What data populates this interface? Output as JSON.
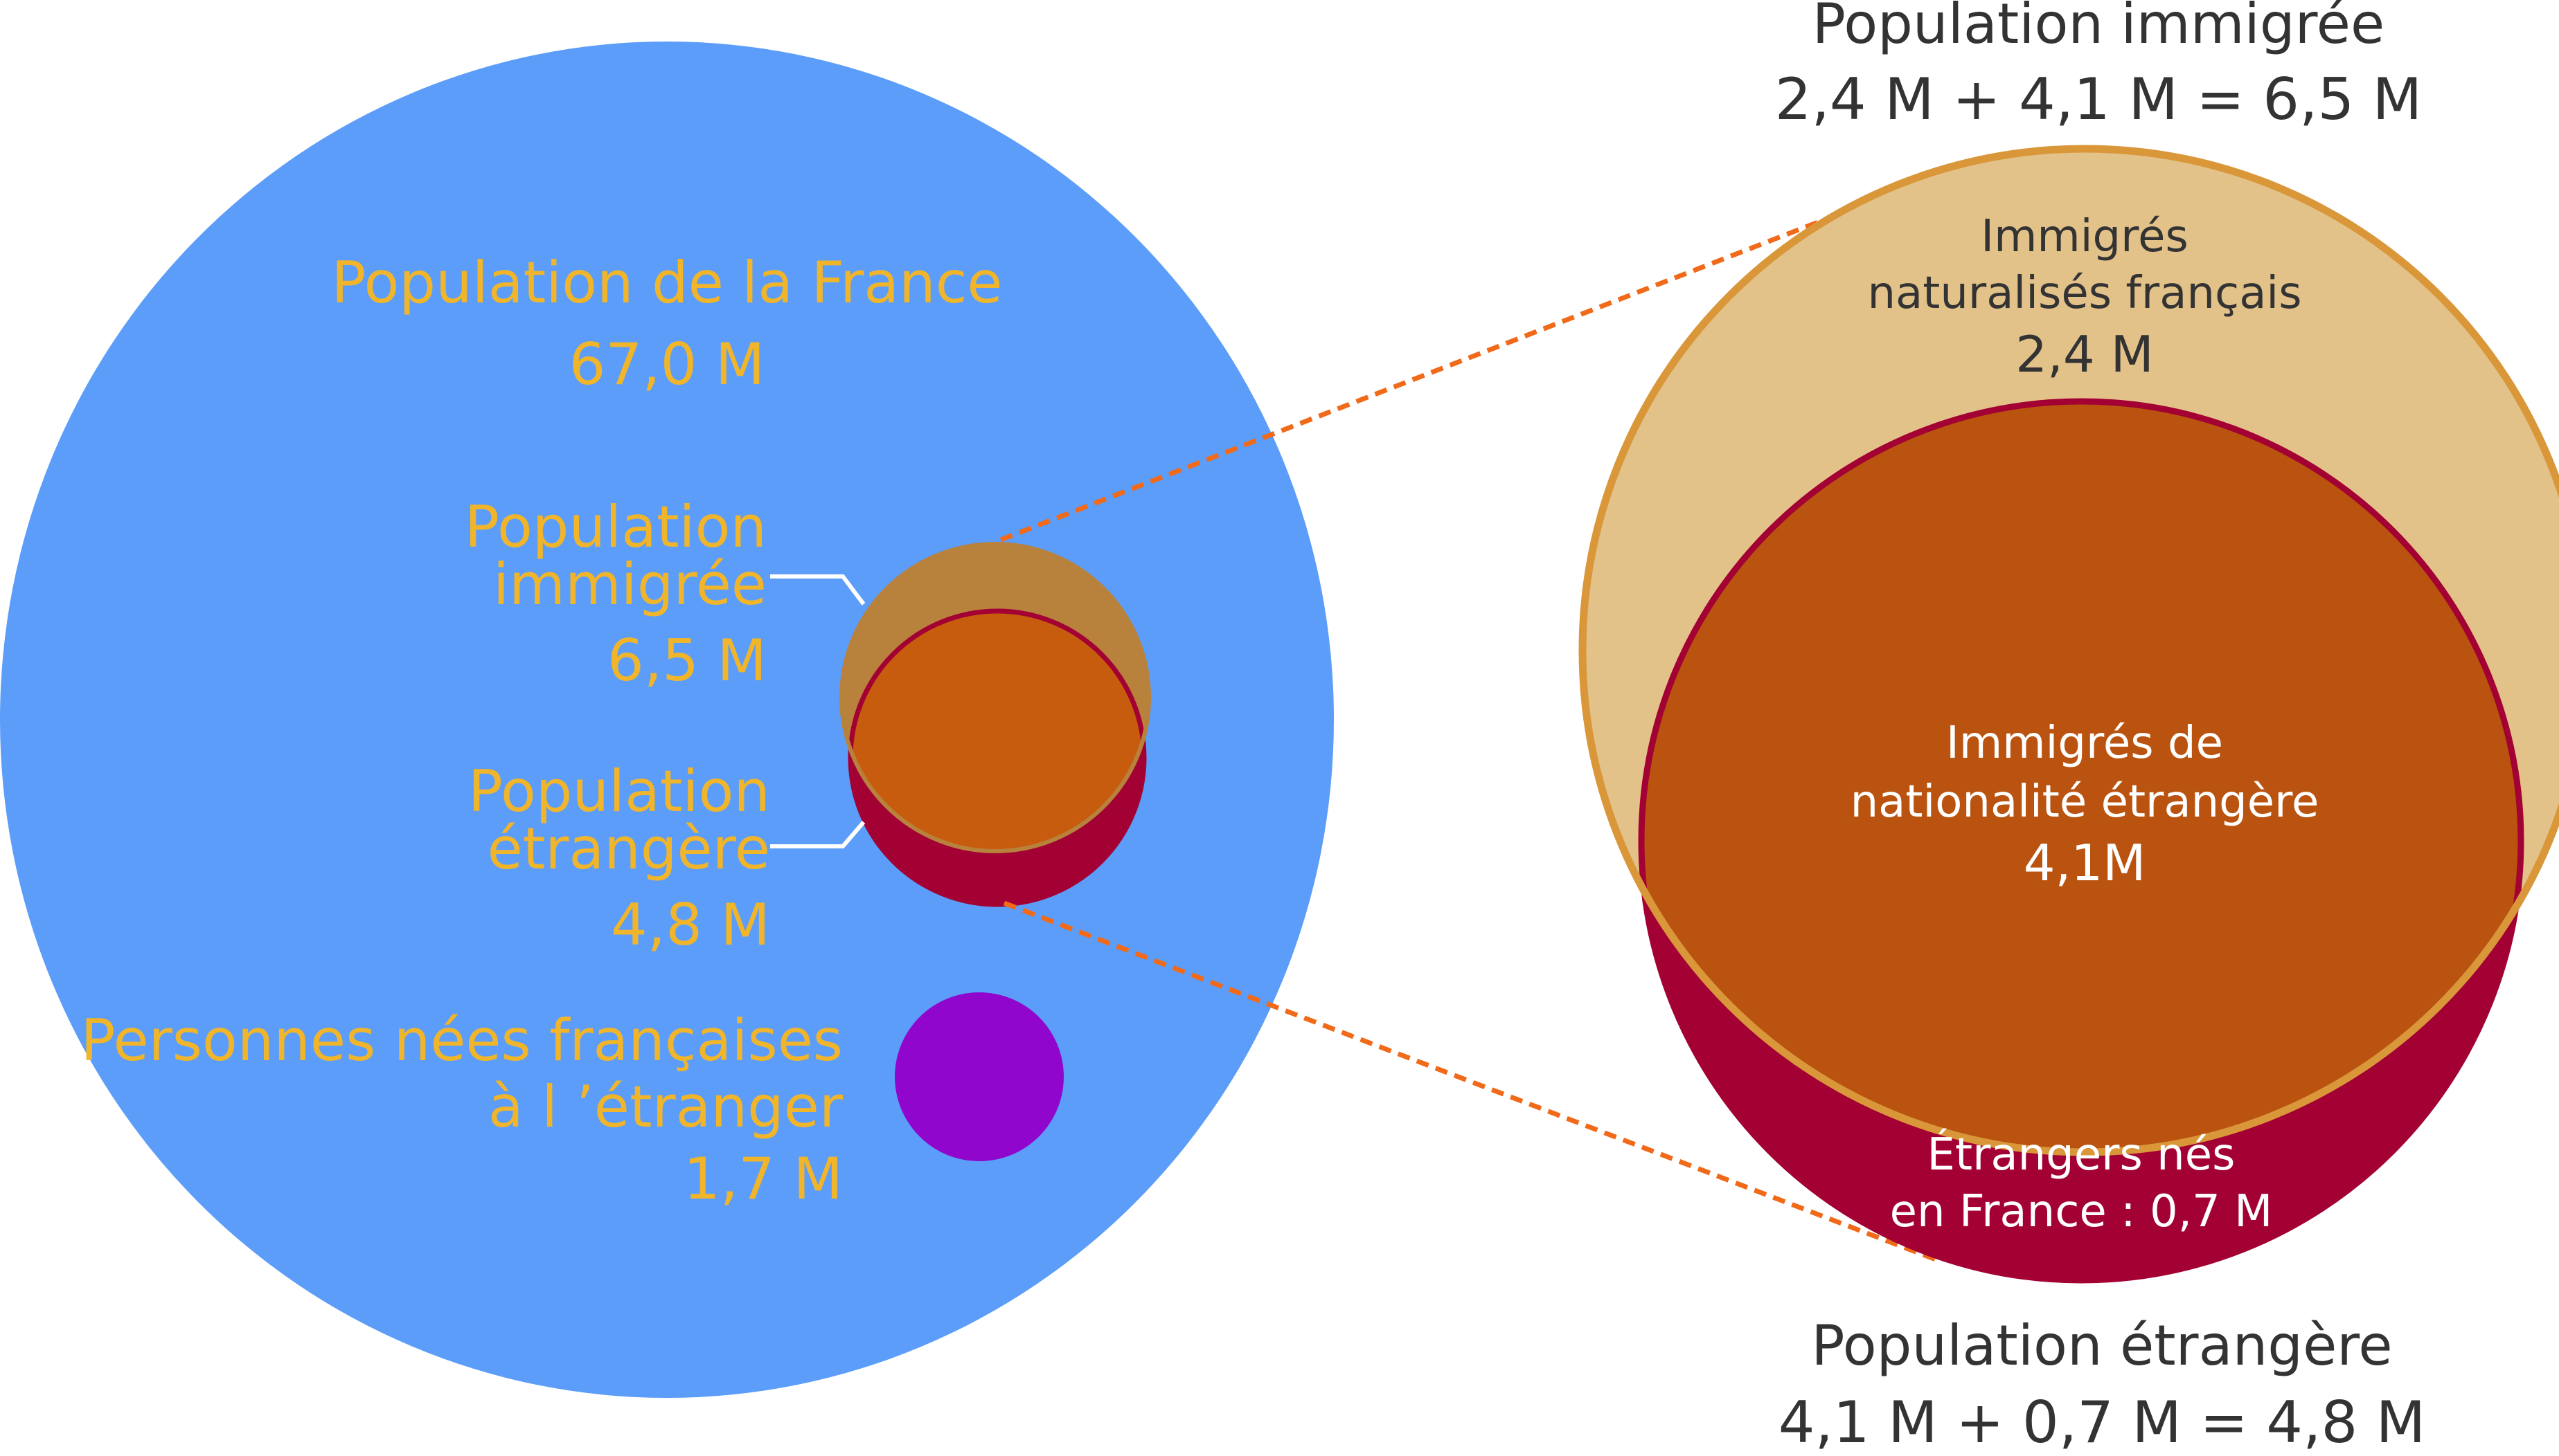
{
  "colors": {
    "france": "#5C9DF9",
    "immigree_small": "#B8813C",
    "etrangere": "#A30033",
    "overlap": "#C75C0E",
    "nees_etranger": "#9106CD",
    "immigree_big_fill": "#E3C28A",
    "immigree_big_stroke": "#D9973A",
    "overlap_big": "#B9530F",
    "connector": "#F06A1A",
    "gold_text": "#F0B52A",
    "dark_text": "#333333"
  },
  "left": {
    "france": {
      "title": "Population de la France",
      "value": "67,0 M"
    },
    "immigree": {
      "line1": "Population",
      "line2": "immigrée",
      "value": "6,5 M"
    },
    "etrangere": {
      "line1": "Population",
      "line2": "étrangère",
      "value": "4,8 M"
    },
    "nees_etranger": {
      "line1": "Personnes nées françaises",
      "line2": "à l ’étranger",
      "value": "1,7 M"
    }
  },
  "right": {
    "top_header": {
      "title": "Population immigrée",
      "equation": "2,4 M + 4,1 M = 6,5 M"
    },
    "naturalises": {
      "line1": "Immigrés",
      "line2": "naturalisés français",
      "value": "2,4 M"
    },
    "nationalite_etrangere": {
      "line1": "Immigrés de",
      "line2": "nationalité étrangère",
      "value": "4,1M"
    },
    "etrangers_nes_france": {
      "line1": "Étrangers nés",
      "line2": "en France : 0,7 M"
    },
    "bottom_header": {
      "title": "Population étrangère",
      "equation": "4,1 M + 0,7 M = 4,8 M"
    }
  }
}
